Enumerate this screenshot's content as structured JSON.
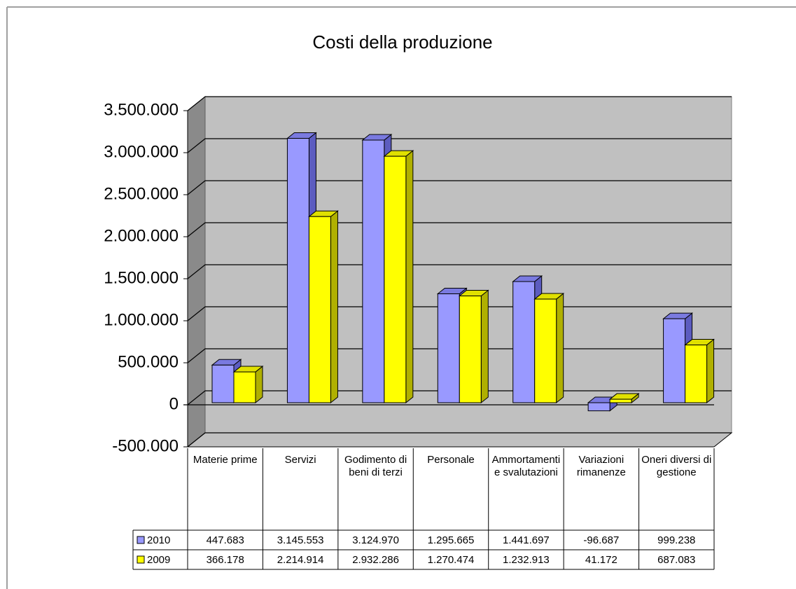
{
  "chart_data": {
    "type": "bar3d",
    "title": "Costi della produzione",
    "categories": [
      "Materie prime",
      "Servizi",
      "Godimento di beni di terzi",
      "Personale",
      "Ammortamenti e svalutazioni",
      "Variazioni rimanenze",
      "Oneri diversi di gestione"
    ],
    "series": [
      {
        "name": "2010",
        "color": "#9999ff",
        "values": [
          447683,
          3145553,
          3124970,
          1295665,
          1441697,
          -96687,
          999238
        ],
        "value_labels": [
          "447.683",
          "3.145.553",
          "3.124.970",
          "1.295.665",
          "1.441.697",
          "-96.687",
          "999.238"
        ]
      },
      {
        "name": "2009",
        "color": "#ffff00",
        "values": [
          366178,
          2214914,
          2932286,
          1270474,
          1232913,
          41172,
          687083
        ],
        "value_labels": [
          "366.178",
          "2.214.914",
          "2.932.286",
          "1.270.474",
          "1.232.913",
          "41.172",
          "687.083"
        ]
      }
    ],
    "ylim": [
      -500000,
      3500000
    ],
    "yticks": [
      {
        "value": -500000,
        "label": "-500.000"
      },
      0,
      {
        "value": 500000,
        "label": "500.000"
      },
      {
        "value": 1000000,
        "label": "1.000.000"
      },
      {
        "value": 1500000,
        "label": "1.500.000"
      },
      {
        "value": 2000000,
        "label": "2.000.000"
      },
      {
        "value": 2500000,
        "label": "2.500.000"
      },
      {
        "value": 3000000,
        "label": "3.000.000"
      },
      {
        "value": 3500000,
        "label": "3.500.000"
      }
    ],
    "grid": true,
    "data_table": true
  }
}
